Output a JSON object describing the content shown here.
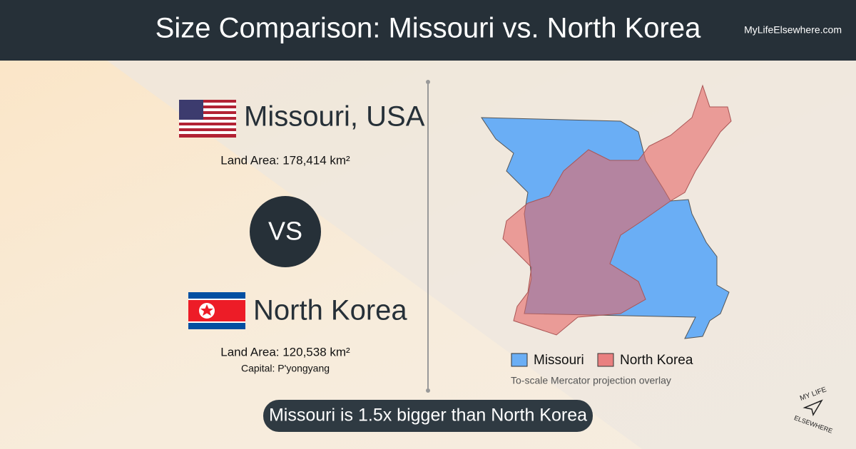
{
  "header": {
    "title": "Size Comparison: Missouri vs. North Korea",
    "site": "MyLifeElsewhere.com"
  },
  "place_a": {
    "name": "Missouri, USA",
    "area": "Land Area: 178,414 km²"
  },
  "versus": "VS",
  "place_b": {
    "name": "North Korea",
    "area": "Land Area: 120,538 km²",
    "capital": "Capital: P'yongyang"
  },
  "legend": {
    "items": [
      "Missouri",
      "North Korea"
    ],
    "note": "To-scale Mercator projection overlay"
  },
  "footer": "Missouri is 1.5x bigger than North Korea",
  "logo": {
    "top": "MY LIFE",
    "bottom": "ELSEWHERE"
  }
}
